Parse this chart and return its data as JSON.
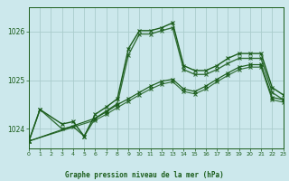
{
  "title": "Graphe pression niveau de la mer (hPa)",
  "background_color": "#cce8ec",
  "plot_bg_color": "#cce8ec",
  "grid_color": "#aacccc",
  "line_color": "#1a5c1a",
  "xlim": [
    0,
    23
  ],
  "ylim": [
    1023.6,
    1026.5
  ],
  "yticks": [
    1024,
    1025,
    1026
  ],
  "xticks": [
    0,
    1,
    2,
    3,
    4,
    5,
    6,
    7,
    8,
    9,
    10,
    11,
    12,
    13,
    14,
    15,
    16,
    17,
    18,
    19,
    20,
    21,
    22,
    23
  ],
  "series1_x": [
    0,
    1,
    3,
    4,
    5,
    6,
    7,
    8,
    9,
    10,
    11,
    12,
    13,
    14,
    15,
    16,
    17,
    18,
    19,
    20,
    21,
    22,
    23
  ],
  "series1_y": [
    1023.75,
    1024.4,
    1024.1,
    1024.15,
    1023.85,
    1024.3,
    1024.45,
    1024.62,
    1025.65,
    1026.02,
    1026.02,
    1026.08,
    1026.18,
    1025.3,
    1025.2,
    1025.2,
    1025.3,
    1025.45,
    1025.55,
    1025.55,
    1025.55,
    1024.85,
    1024.7
  ],
  "series2_x": [
    0,
    1,
    3,
    4,
    5,
    6,
    7,
    8,
    9,
    10,
    11,
    12,
    13,
    14,
    15,
    16,
    17,
    18,
    19,
    20,
    21,
    22,
    23
  ],
  "series2_y": [
    1023.75,
    1024.4,
    1024.0,
    1024.05,
    1023.85,
    1024.22,
    1024.37,
    1024.52,
    1025.52,
    1025.95,
    1025.95,
    1026.02,
    1026.08,
    1025.22,
    1025.12,
    1025.12,
    1025.22,
    1025.35,
    1025.45,
    1025.45,
    1025.45,
    1024.75,
    1024.6
  ],
  "series3_x": [
    0,
    6,
    7,
    8,
    9,
    10,
    11,
    12,
    13,
    14,
    15,
    16,
    17,
    18,
    19,
    20,
    21,
    22,
    23
  ],
  "series3_y": [
    1023.75,
    1024.22,
    1024.35,
    1024.5,
    1024.62,
    1024.75,
    1024.88,
    1024.98,
    1025.02,
    1024.82,
    1024.77,
    1024.88,
    1025.02,
    1025.15,
    1025.27,
    1025.32,
    1025.32,
    1024.65,
    1024.6
  ],
  "series4_x": [
    0,
    6,
    7,
    8,
    9,
    10,
    11,
    12,
    13,
    14,
    15,
    16,
    17,
    18,
    19,
    20,
    21,
    22,
    23
  ],
  "series4_y": [
    1023.75,
    1024.18,
    1024.3,
    1024.44,
    1024.57,
    1024.7,
    1024.82,
    1024.92,
    1024.97,
    1024.77,
    1024.72,
    1024.82,
    1024.97,
    1025.1,
    1025.22,
    1025.27,
    1025.27,
    1024.6,
    1024.55
  ]
}
